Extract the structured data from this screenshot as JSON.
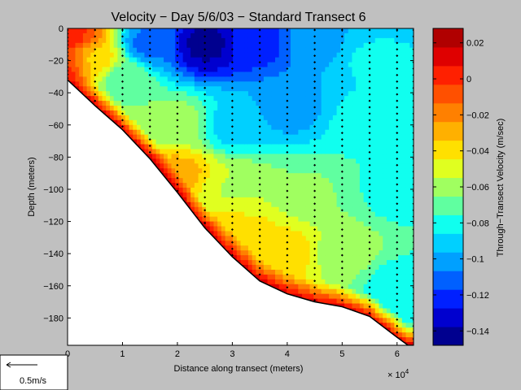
{
  "chart_data": {
    "type": "heatmap",
    "title": "Velocity − Day 5/6/03 − Standard Transect 6",
    "xlabel": "Distance along transect (meters)",
    "x_multiplier": "× 10",
    "x_multiplier_exp": "4",
    "ylabel": "Depth (meters)",
    "colorbar_label": "Through−Transect Velocity (m/sec)",
    "xlim": [
      0,
      63000
    ],
    "ylim": [
      -197,
      0
    ],
    "x_ticks": [
      0,
      10000,
      20000,
      30000,
      40000,
      50000,
      60000
    ],
    "x_tick_labels": [
      "0",
      "1",
      "2",
      "3",
      "4",
      "5",
      "6"
    ],
    "y_ticks": [
      0,
      -20,
      -40,
      -60,
      -80,
      -100,
      -120,
      -140,
      -160,
      -180
    ],
    "y_tick_labels": [
      "0",
      "−20",
      "−40",
      "−60",
      "−80",
      "−100",
      "−120",
      "−140",
      "−160",
      "−180"
    ],
    "clim": [
      -0.148,
      0.028
    ],
    "colorbar_ticks": [
      0.02,
      0,
      -0.02,
      -0.04,
      -0.06,
      -0.08,
      -0.1,
      -0.12,
      -0.14
    ],
    "colorbar_tick_labels": [
      "0.02",
      "0",
      "−0.02",
      "−0.04",
      "−0.06",
      "−0.08",
      "−0.1",
      "−0.12",
      "−0.14"
    ],
    "colormap": [
      "#00008f",
      "#0000cf",
      "#0020ff",
      "#0060ff",
      "#00a0ff",
      "#00d0ff",
      "#10ffef",
      "#60ffa0",
      "#a0ff60",
      "#e0ff20",
      "#ffe000",
      "#ffb000",
      "#ff8000",
      "#ff5000",
      "#ff2000",
      "#df0000",
      "#b00000"
    ],
    "bathymetry": {
      "x": [
        0,
        5000,
        10000,
        15000,
        20000,
        25000,
        30000,
        35000,
        40000,
        45000,
        50000,
        55000,
        60000,
        62000,
        63000
      ],
      "depth": [
        -32,
        -48,
        -63,
        -81,
        -102,
        -124,
        -142,
        -157,
        -165,
        -170,
        -173,
        -179,
        -192,
        -197,
        -197
      ]
    },
    "profiles_x": [
      0,
      5000,
      10000,
      15000,
      20000,
      25000,
      30000,
      35000,
      40000,
      45000,
      50000,
      55000,
      60000,
      63000
    ],
    "velocity_field_description_points": [
      {
        "x": 500,
        "depth": -5,
        "v": 0.0
      },
      {
        "x": 2000,
        "depth": -20,
        "v": -0.02
      },
      {
        "x": 5000,
        "depth": -20,
        "v": -0.04
      },
      {
        "x": 10000,
        "depth": -30,
        "v": -0.07
      },
      {
        "x": 15000,
        "depth": -10,
        "v": -0.11
      },
      {
        "x": 25000,
        "depth": -10,
        "v": -0.14
      },
      {
        "x": 35000,
        "depth": -10,
        "v": -0.12
      },
      {
        "x": 45000,
        "depth": -10,
        "v": -0.1
      },
      {
        "x": 55000,
        "depth": -20,
        "v": -0.085
      },
      {
        "x": 20000,
        "depth": -60,
        "v": -0.06
      },
      {
        "x": 30000,
        "depth": -60,
        "v": -0.09
      },
      {
        "x": 40000,
        "depth": -50,
        "v": -0.1
      },
      {
        "x": 55000,
        "depth": -60,
        "v": -0.08
      },
      {
        "x": 20000,
        "depth": -90,
        "v": -0.03
      },
      {
        "x": 30000,
        "depth": -100,
        "v": -0.055
      },
      {
        "x": 45000,
        "depth": -100,
        "v": -0.065
      },
      {
        "x": 60000,
        "depth": -100,
        "v": -0.08
      },
      {
        "x": 30000,
        "depth": -130,
        "v": -0.035
      },
      {
        "x": 40000,
        "depth": -140,
        "v": -0.04
      },
      {
        "x": 50000,
        "depth": -140,
        "v": -0.06
      },
      {
        "x": 60000,
        "depth": -160,
        "v": -0.08
      }
    ]
  },
  "scale_legend": {
    "label": "0.5m/s"
  }
}
